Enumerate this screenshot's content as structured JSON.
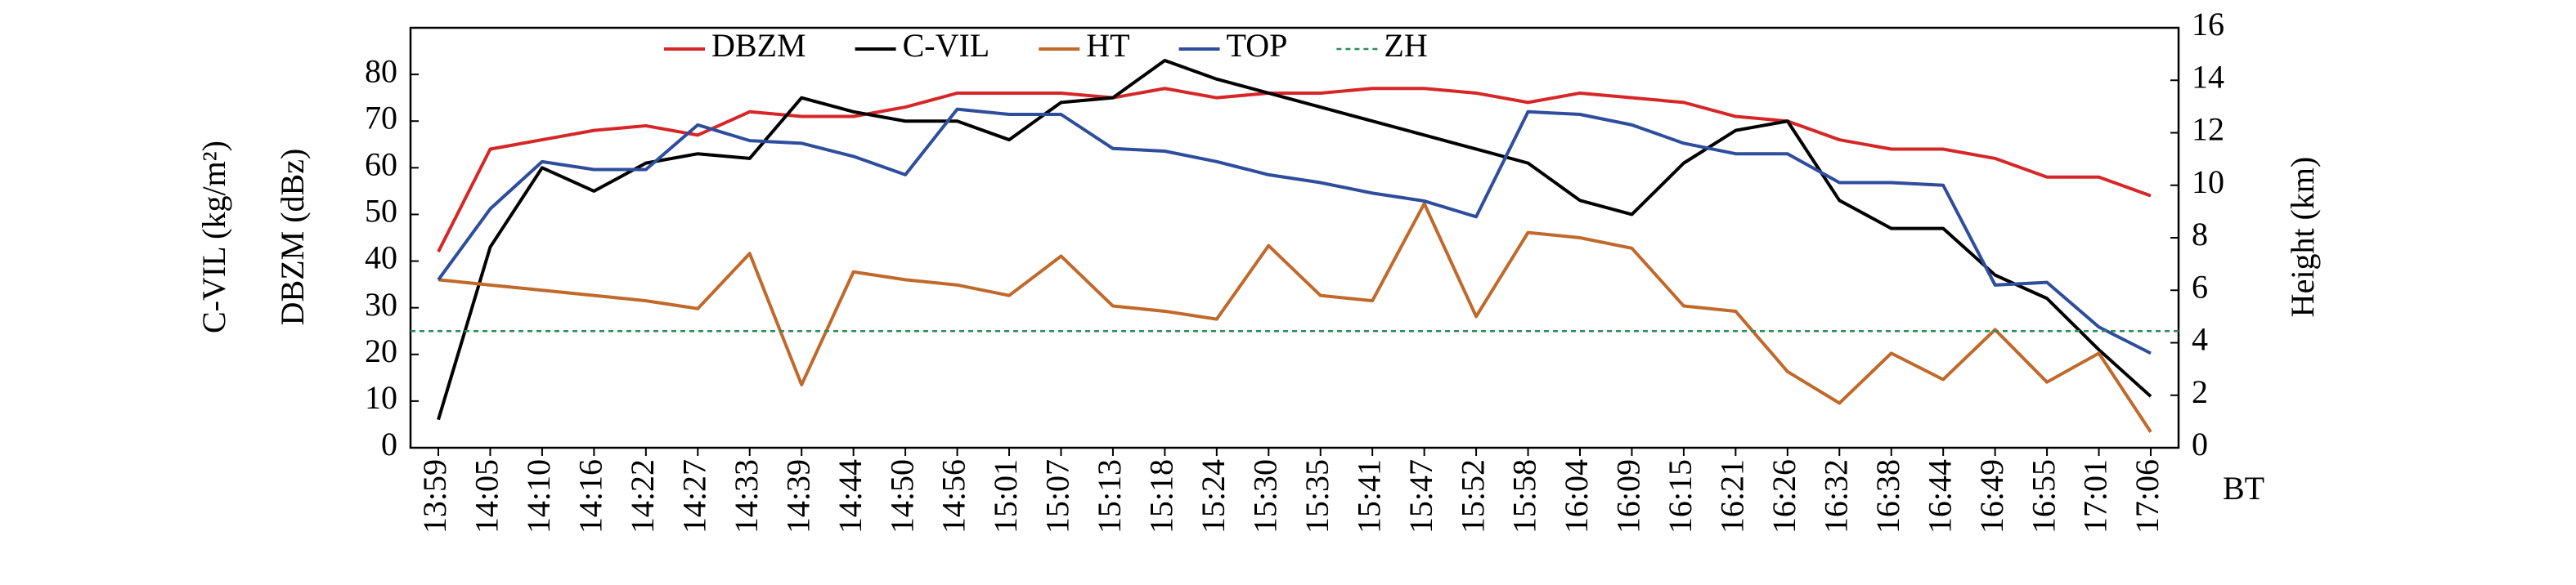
{
  "chart_data": {
    "type": "line",
    "categories": [
      "13:59",
      "14:05",
      "14:10",
      "14:16",
      "14:22",
      "14:27",
      "14:33",
      "14:39",
      "14:44",
      "14:50",
      "14:56",
      "15:01",
      "15:07",
      "15:13",
      "15:18",
      "15:24",
      "15:30",
      "15:35",
      "15:41",
      "15:47",
      "15:52",
      "15:58",
      "16:04",
      "16:09",
      "16:15",
      "16:21",
      "16:26",
      "16:32",
      "16:38",
      "16:44",
      "16:49",
      "16:55",
      "17:01",
      "17:06"
    ],
    "xlabel": "BT",
    "ylabel": "DBZM (dBz)",
    "ylabel2": "C-VIL (kg/m²)",
    "y2label": "Height (km)",
    "ylim": [
      0,
      90
    ],
    "yticks": [
      0,
      10,
      20,
      30,
      40,
      50,
      60,
      70,
      80
    ],
    "y2lim": [
      0,
      16
    ],
    "y2ticks": [
      0,
      2,
      4,
      6,
      8,
      10,
      12,
      14,
      16
    ],
    "series": [
      {
        "name": "DBZM",
        "color": "#d62728",
        "values": [
          42,
          64,
          66,
          68,
          69,
          67,
          72,
          71,
          71,
          73,
          76,
          76,
          76,
          75,
          77,
          75,
          76,
          76,
          77,
          77,
          76,
          74,
          76,
          75,
          74,
          71,
          70,
          66,
          64,
          64,
          62,
          58,
          58,
          54
        ]
      },
      {
        "name": "C-VIL",
        "color": "#000000",
        "values": [
          6,
          43,
          60,
          55,
          61,
          63,
          62,
          75,
          72,
          70,
          70,
          66,
          74,
          75,
          83,
          79,
          76,
          73,
          70,
          67,
          64,
          61,
          53,
          50,
          61,
          68,
          70,
          53,
          47,
          47,
          37,
          32,
          21,
          11
        ]
      },
      {
        "name": "HT",
        "color": "#c0692b",
        "axis": "y2",
        "values": [
          6.4,
          6.2,
          6.0,
          5.8,
          5.6,
          5.3,
          7.4,
          2.4,
          6.7,
          6.4,
          6.2,
          5.8,
          7.3,
          5.4,
          5.2,
          4.9,
          7.7,
          5.8,
          5.6,
          9.3,
          5.0,
          8.2,
          8.0,
          7.6,
          5.4,
          5.2,
          2.9,
          1.7,
          3.6,
          2.6,
          4.5,
          2.5,
          3.6,
          0.6
        ]
      },
      {
        "name": "TOP",
        "color": "#2e4d9c",
        "axis": "y2",
        "values": [
          6.4,
          9.1,
          10.9,
          10.6,
          10.6,
          12.3,
          11.7,
          11.6,
          11.1,
          10.4,
          12.9,
          12.7,
          12.7,
          11.4,
          11.3,
          10.9,
          10.4,
          10.1,
          9.7,
          9.4,
          8.8,
          12.8,
          12.7,
          12.3,
          11.6,
          11.2,
          11.2,
          10.1,
          10.1,
          10.0,
          6.2,
          6.3,
          4.6,
          3.6
        ]
      },
      {
        "name": "ZH",
        "color": "#2e8b57",
        "dashed": true,
        "value": 25
      }
    ]
  }
}
